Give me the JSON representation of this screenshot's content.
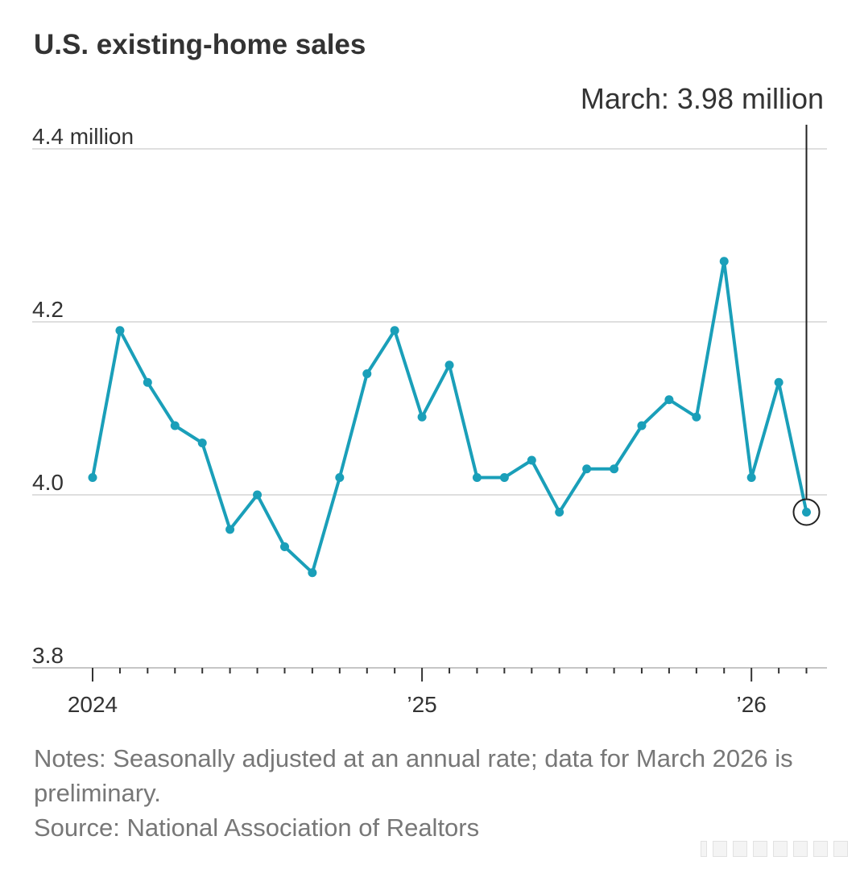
{
  "colors": {
    "background": "#ffffff",
    "title": "#333333",
    "text": "#333333",
    "muted": "#777777",
    "line": "#1a9fb9",
    "grid": "#dfdfdf",
    "axis": "#c6c6c6",
    "tick": "#333333",
    "annotation": "#222222"
  },
  "chart_data": {
    "type": "line",
    "title": "U.S. existing-home sales",
    "ylim": [
      3.8,
      4.4
    ],
    "xlim": [
      2024.0,
      2026.167
    ],
    "grid": true,
    "yticks": [
      {
        "value": 4.4,
        "label": "4.4 million"
      },
      {
        "value": 4.2,
        "label": "4.2"
      },
      {
        "value": 4.0,
        "label": "4.0"
      },
      {
        "value": 3.8,
        "label": "3.8"
      }
    ],
    "xticks": [
      {
        "value": 2024.0,
        "label": "2024"
      },
      {
        "value": 2025.0,
        "label": "’25"
      },
      {
        "value": 2026.0,
        "label": "’26"
      }
    ],
    "x": [
      2024.0,
      2024.083,
      2024.167,
      2024.25,
      2024.333,
      2024.417,
      2024.5,
      2024.583,
      2024.667,
      2024.75,
      2024.833,
      2024.917,
      2025.0,
      2025.083,
      2025.167,
      2025.25,
      2025.333,
      2025.417,
      2025.5,
      2025.583,
      2025.667,
      2025.75,
      2025.833,
      2025.917,
      2026.0,
      2026.083,
      2026.167
    ],
    "values": [
      4.02,
      4.19,
      4.13,
      4.08,
      4.06,
      3.96,
      4.0,
      3.94,
      3.91,
      4.02,
      4.14,
      4.19,
      4.09,
      4.15,
      4.02,
      4.02,
      4.04,
      3.98,
      4.03,
      4.03,
      4.08,
      4.11,
      4.09,
      4.27,
      4.02,
      4.13,
      3.98
    ],
    "annotation": {
      "x": 2026.167,
      "value": 3.98,
      "label": "March: 3.98 million"
    }
  },
  "footer": {
    "notes": "Notes: Seasonally adjusted at an annual rate; data for March 2026 is preliminary.",
    "source": "Source: National Association of Realtors"
  }
}
